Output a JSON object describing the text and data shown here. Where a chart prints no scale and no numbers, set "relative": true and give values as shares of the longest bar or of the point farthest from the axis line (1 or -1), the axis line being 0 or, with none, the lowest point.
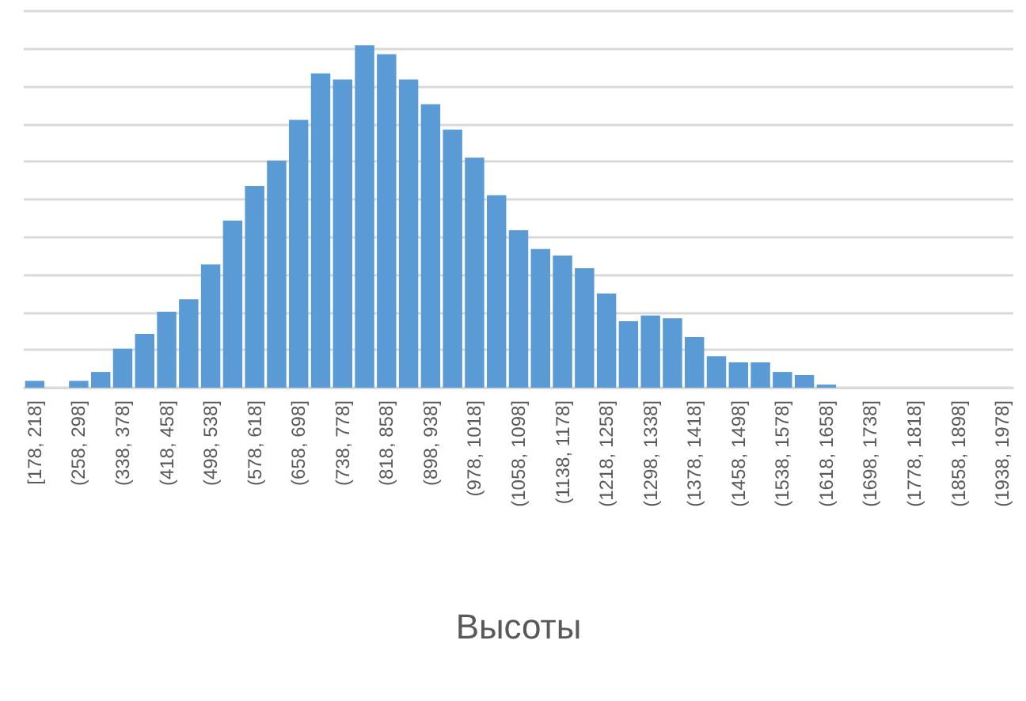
{
  "chart_data": {
    "type": "bar",
    "xlabel": "Высоты",
    "relative": true,
    "grid": "y",
    "color": "#5b9bd5",
    "categories": [
      "[178, 218]",
      null,
      "(258, 298]",
      null,
      "(338, 378]",
      null,
      "(418, 458]",
      null,
      "(498, 538]",
      null,
      "(578, 618]",
      null,
      "(658, 698]",
      null,
      "(738, 778]",
      null,
      "(818, 858]",
      null,
      "(898, 938]",
      null,
      "(978, 1018]",
      null,
      "(1058, 1098]",
      null,
      "(1138, 1178]",
      null,
      "(1218, 1258]",
      null,
      "(1298, 1338]",
      null,
      "(1378, 1418]",
      null,
      "(1458, 1498]",
      null,
      "(1538, 1578]",
      null,
      "(1618, 1658]",
      null,
      "(1698, 1738]",
      null,
      "(1778, 1818]",
      null,
      "(1858, 1898]",
      null,
      "(1938, 1978]"
    ],
    "values": [
      0.02,
      0,
      0.02,
      0.046,
      0.114,
      0.157,
      0.222,
      0.258,
      0.36,
      0.488,
      0.589,
      0.663,
      0.782,
      0.918,
      0.9,
      1,
      0.974,
      0.9,
      0.828,
      0.754,
      0.672,
      0.562,
      0.46,
      0.405,
      0.386,
      0.349,
      0.275,
      0.194,
      0.211,
      0.203,
      0.148,
      0.092,
      0.074,
      0.074,
      0.046,
      0.037,
      0.009,
      0,
      0,
      0,
      0,
      0,
      0,
      0,
      0
    ]
  }
}
